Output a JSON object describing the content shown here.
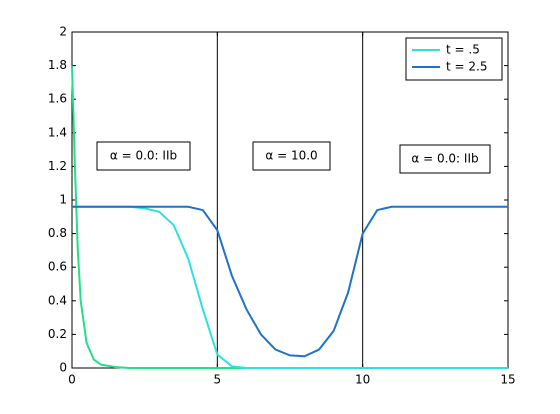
{
  "chart_data": {
    "type": "line",
    "x": [
      0,
      0.1,
      0.2,
      0.3,
      0.5,
      0.75,
      1,
      1.5,
      2,
      2.5,
      3,
      3.5,
      4,
      4.5,
      5,
      5.5,
      6,
      6.5,
      7,
      7.5,
      8,
      8.5,
      9,
      9.5,
      10,
      10.5,
      11,
      12,
      13,
      14,
      15
    ],
    "series": [
      {
        "color": "#22e08a",
        "values": [
          1.8,
          1.2,
          0.7,
          0.4,
          0.15,
          0.05,
          0.02,
          0.005,
          0,
          0,
          0,
          0,
          0,
          0,
          0,
          0,
          0,
          0,
          0,
          0,
          0,
          0,
          0,
          0,
          0,
          0,
          0,
          0,
          0,
          0,
          0
        ]
      },
      {
        "name": "t = .5",
        "color": "#2ee0e0",
        "values": [
          0.96,
          0.96,
          0.96,
          0.96,
          0.96,
          0.96,
          0.96,
          0.96,
          0.96,
          0.95,
          0.93,
          0.85,
          0.65,
          0.35,
          0.08,
          0.01,
          0,
          0,
          0,
          0,
          0,
          0,
          0,
          0,
          0,
          0,
          0,
          0,
          0,
          0,
          0
        ]
      },
      {
        "name": "t = 2.5",
        "color": "#1f72c8",
        "values": [
          0.96,
          0.96,
          0.96,
          0.96,
          0.96,
          0.96,
          0.96,
          0.96,
          0.96,
          0.96,
          0.96,
          0.96,
          0.96,
          0.94,
          0.82,
          0.55,
          0.35,
          0.2,
          0.11,
          0.075,
          0.07,
          0.11,
          0.22,
          0.45,
          0.8,
          0.94,
          0.96,
          0.96,
          0.96,
          0.96,
          0.96
        ]
      }
    ],
    "vlines": [
      5,
      10
    ],
    "annotations": [
      "α = 0.0: IIb",
      "α = 10.0",
      "α = 0.0: IIb"
    ],
    "xlim": [
      0,
      15
    ],
    "xticks": [
      0,
      5,
      10,
      15
    ],
    "ylim": [
      0,
      2
    ],
    "yticks": [
      0,
      0.2,
      0.4,
      0.6,
      0.8,
      1,
      1.2,
      1.4,
      1.6,
      1.8,
      2
    ],
    "legend": "top-right"
  }
}
